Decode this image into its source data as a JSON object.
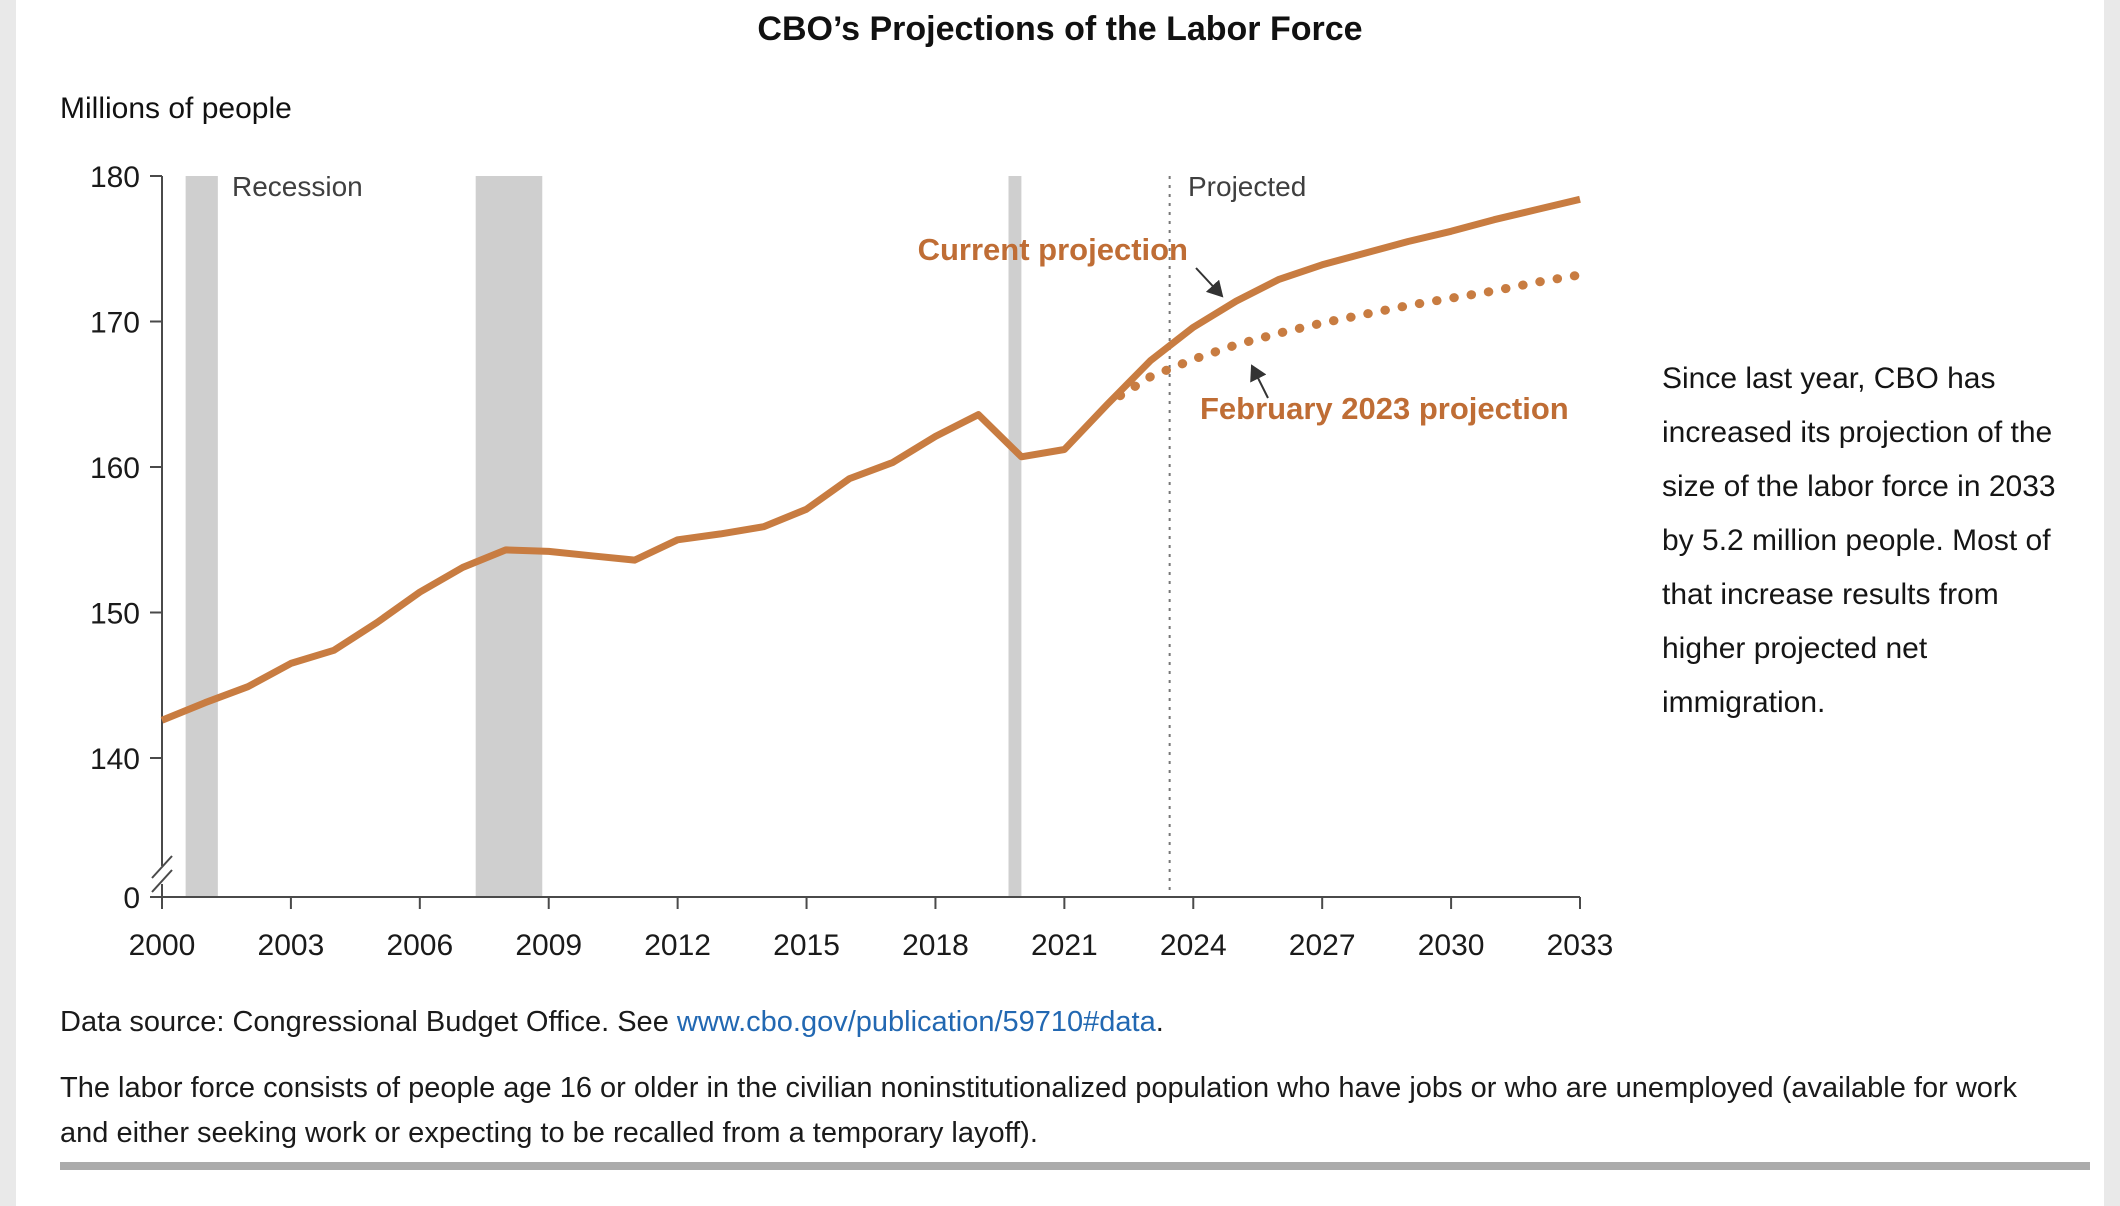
{
  "chart_data": {
    "type": "line",
    "title": "CBO’s Projections of the Labor Force",
    "ylabel": "Millions of people",
    "xlim": [
      2000,
      2033
    ],
    "ylim": [
      140,
      180
    ],
    "grid": false,
    "y_axis_break": true,
    "x_ticks": [
      2000,
      2003,
      2006,
      2009,
      2012,
      2015,
      2018,
      2021,
      2024,
      2027,
      2030,
      2033
    ],
    "y_ticks": [
      180,
      170,
      160,
      150,
      140,
      0
    ],
    "recession_shading": {
      "label": "Recession",
      "color": "#cfcfcf",
      "bands": [
        [
          2000.55,
          2001.3
        ],
        [
          2007.3,
          2008.85
        ],
        [
          2019.7,
          2020.0
        ]
      ]
    },
    "projection_divider": {
      "x": 2023.45,
      "label": "Projected"
    },
    "series": [
      {
        "name": "Current projection",
        "line_style": "solid",
        "color": "#c87c41",
        "x": [
          2000,
          2001,
          2002,
          2003,
          2004,
          2005,
          2006,
          2007,
          2008,
          2009,
          2010,
          2011,
          2012,
          2013,
          2014,
          2015,
          2016,
          2017,
          2018,
          2019,
          2020,
          2021,
          2022,
          2023,
          2024,
          2025,
          2026,
          2027,
          2028,
          2029,
          2030,
          2031,
          2032,
          2033
        ],
        "values": [
          142.6,
          143.8,
          144.9,
          146.5,
          147.4,
          149.3,
          151.4,
          153.1,
          154.3,
          154.2,
          153.9,
          153.6,
          155.0,
          155.4,
          155.9,
          157.1,
          159.2,
          160.3,
          162.1,
          163.6,
          160.7,
          161.2,
          164.3,
          167.3,
          169.6,
          171.4,
          172.9,
          173.9,
          174.7,
          175.5,
          176.2,
          177.0,
          177.7,
          178.4
        ]
      },
      {
        "name": "February 2023 projection",
        "line_style": "dotted",
        "color": "#c87c41",
        "x": [
          2022.3,
          2023,
          2024,
          2025,
          2026,
          2027,
          2028,
          2029,
          2030,
          2031,
          2032,
          2033
        ],
        "values": [
          164.9,
          166.2,
          167.4,
          168.4,
          169.2,
          169.9,
          170.5,
          171.1,
          171.6,
          172.1,
          172.7,
          173.2
        ]
      }
    ]
  },
  "annotations": {
    "recession_label": "Recession",
    "projected_label": "Projected",
    "current_projection_label": "Current projection",
    "feb_2023_label": "February 2023 projection",
    "side_note": "Since last year, CBO has increased its projection of the size of the labor force in 2033 by 5.2 million people. Most of that increase results from higher projected net immigration."
  },
  "footer": {
    "data_source_prefix": "Data source: Congressional Budget Office. See ",
    "data_source_link": "www.cbo.gov/publication/59710#data",
    "data_source_suffix": ".",
    "definition_note": "The labor force consists of people age 16 or older in the civilian noninstitutionalized population who have jobs or who are unemployed (available for work and either seeking work or expecting to be recalled from a temporary layoff)."
  },
  "colors": {
    "accent_orange": "#c87c41",
    "accent_orange_text": "#bf6d35",
    "link_blue": "#2268b2",
    "recession_gray": "#cfcfcf",
    "bottom_rule_gray": "#ababab"
  }
}
